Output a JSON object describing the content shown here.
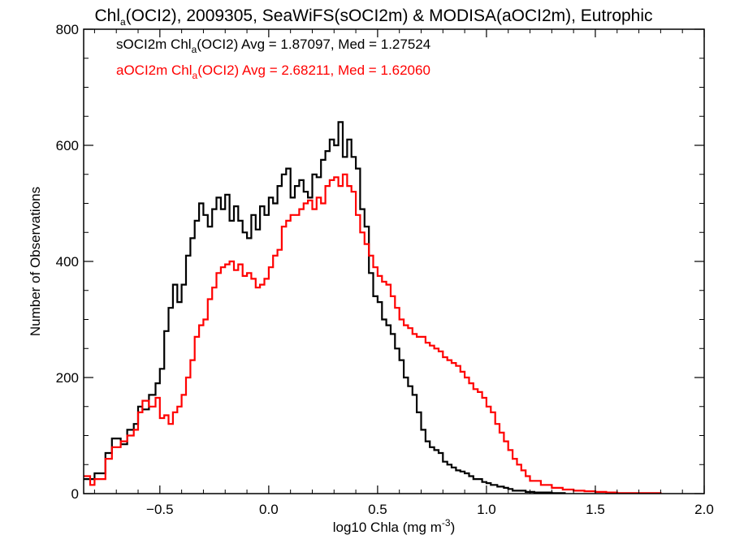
{
  "chart_data": {
    "type": "histogram",
    "title": {
      "prefix": "Chl",
      "subscript": "a",
      "suffix": "(OCI2), 2009305, SeaWiFS(sOCI2m) & MODISA(aOCI2m), Eutrophic"
    },
    "xlabel": {
      "prefix": "log10 Chla (mg m",
      "superscript": "-3",
      "suffix": ")"
    },
    "ylabel": "Number of Observations",
    "xlim": [
      -0.85,
      2.0
    ],
    "ylim": [
      0,
      800
    ],
    "xticks": [
      -0.5,
      0.0,
      0.5,
      1.0,
      1.5,
      2.0
    ],
    "xtick_labels": [
      "−0.5",
      "0.0",
      "0.5",
      "1.0",
      "1.5",
      "2.0"
    ],
    "yticks": [
      0,
      200,
      400,
      600,
      800
    ],
    "ytick_labels": [
      "0",
      "200",
      "400",
      "600",
      "800"
    ],
    "grid": false,
    "legend_position": "top-left",
    "series": [
      {
        "name": "sOCI2m",
        "color": "#000000",
        "legend": {
          "prefix": "sOCI2m Chl",
          "subscript": "a",
          "suffix": "(OCI2) Avg = 1.87097, Med = 1.27524"
        },
        "points": [
          [
            -0.85,
            25
          ],
          [
            -0.8,
            35
          ],
          [
            -0.75,
            70
          ],
          [
            -0.72,
            95
          ],
          [
            -0.68,
            85
          ],
          [
            -0.65,
            110
          ],
          [
            -0.62,
            120
          ],
          [
            -0.6,
            150
          ],
          [
            -0.58,
            145
          ],
          [
            -0.55,
            170
          ],
          [
            -0.52,
            190
          ],
          [
            -0.5,
            215
          ],
          [
            -0.48,
            280
          ],
          [
            -0.46,
            320
          ],
          [
            -0.44,
            360
          ],
          [
            -0.42,
            330
          ],
          [
            -0.4,
            360
          ],
          [
            -0.38,
            410
          ],
          [
            -0.36,
            440
          ],
          [
            -0.34,
            470
          ],
          [
            -0.32,
            500
          ],
          [
            -0.3,
            480
          ],
          [
            -0.28,
            460
          ],
          [
            -0.26,
            490
          ],
          [
            -0.24,
            510
          ],
          [
            -0.22,
            490
          ],
          [
            -0.2,
            515
          ],
          [
            -0.18,
            470
          ],
          [
            -0.16,
            495
          ],
          [
            -0.14,
            470
          ],
          [
            -0.12,
            450
          ],
          [
            -0.1,
            440
          ],
          [
            -0.08,
            480
          ],
          [
            -0.06,
            455
          ],
          [
            -0.04,
            495
          ],
          [
            -0.02,
            480
          ],
          [
            0.0,
            510
          ],
          [
            0.02,
            500
          ],
          [
            0.04,
            530
          ],
          [
            0.06,
            550
          ],
          [
            0.08,
            560
          ],
          [
            0.1,
            510
          ],
          [
            0.12,
            530
          ],
          [
            0.14,
            540
          ],
          [
            0.16,
            520
          ],
          [
            0.18,
            510
          ],
          [
            0.2,
            550
          ],
          [
            0.22,
            545
          ],
          [
            0.24,
            575
          ],
          [
            0.26,
            590
          ],
          [
            0.28,
            610
          ],
          [
            0.3,
            600
          ],
          [
            0.32,
            640
          ],
          [
            0.34,
            580
          ],
          [
            0.36,
            610
          ],
          [
            0.38,
            580
          ],
          [
            0.4,
            560
          ],
          [
            0.42,
            490
          ],
          [
            0.44,
            460
          ],
          [
            0.46,
            380
          ],
          [
            0.48,
            340
          ],
          [
            0.5,
            330
          ],
          [
            0.52,
            300
          ],
          [
            0.54,
            290
          ],
          [
            0.56,
            275
          ],
          [
            0.58,
            250
          ],
          [
            0.6,
            230
          ],
          [
            0.62,
            200
          ],
          [
            0.64,
            185
          ],
          [
            0.66,
            170
          ],
          [
            0.68,
            140
          ],
          [
            0.7,
            110
          ],
          [
            0.72,
            90
          ],
          [
            0.74,
            80
          ],
          [
            0.76,
            75
          ],
          [
            0.78,
            70
          ],
          [
            0.8,
            55
          ],
          [
            0.82,
            50
          ],
          [
            0.84,
            45
          ],
          [
            0.86,
            40
          ],
          [
            0.88,
            38
          ],
          [
            0.9,
            35
          ],
          [
            0.92,
            30
          ],
          [
            0.94,
            25
          ],
          [
            0.96,
            25
          ],
          [
            0.98,
            20
          ],
          [
            1.0,
            18
          ],
          [
            1.02,
            15
          ],
          [
            1.05,
            12
          ],
          [
            1.08,
            10
          ],
          [
            1.1,
            8
          ],
          [
            1.12,
            5
          ],
          [
            1.15,
            5
          ],
          [
            1.18,
            3
          ],
          [
            1.22,
            2
          ],
          [
            1.26,
            2
          ],
          [
            1.3,
            1
          ],
          [
            1.36,
            0
          ]
        ]
      },
      {
        "name": "aOCI2m",
        "color": "#ff0000",
        "legend": {
          "prefix": "aOCI2m Chl",
          "subscript": "a",
          "suffix": "(OCI2) Avg = 2.68211, Med = 1.62060"
        },
        "points": [
          [
            -0.85,
            30
          ],
          [
            -0.82,
            15
          ],
          [
            -0.8,
            25
          ],
          [
            -0.75,
            60
          ],
          [
            -0.72,
            80
          ],
          [
            -0.68,
            90
          ],
          [
            -0.65,
            100
          ],
          [
            -0.62,
            110
          ],
          [
            -0.6,
            140
          ],
          [
            -0.58,
            160
          ],
          [
            -0.55,
            150
          ],
          [
            -0.52,
            165
          ],
          [
            -0.5,
            130
          ],
          [
            -0.48,
            135
          ],
          [
            -0.46,
            120
          ],
          [
            -0.44,
            140
          ],
          [
            -0.42,
            150
          ],
          [
            -0.4,
            170
          ],
          [
            -0.38,
            200
          ],
          [
            -0.36,
            230
          ],
          [
            -0.34,
            270
          ],
          [
            -0.32,
            290
          ],
          [
            -0.3,
            300
          ],
          [
            -0.28,
            335
          ],
          [
            -0.26,
            355
          ],
          [
            -0.24,
            380
          ],
          [
            -0.22,
            390
          ],
          [
            -0.2,
            395
          ],
          [
            -0.18,
            400
          ],
          [
            -0.16,
            385
          ],
          [
            -0.14,
            395
          ],
          [
            -0.12,
            375
          ],
          [
            -0.1,
            380
          ],
          [
            -0.08,
            370
          ],
          [
            -0.06,
            355
          ],
          [
            -0.04,
            360
          ],
          [
            -0.02,
            370
          ],
          [
            0.0,
            390
          ],
          [
            0.02,
            410
          ],
          [
            0.04,
            420
          ],
          [
            0.06,
            460
          ],
          [
            0.08,
            470
          ],
          [
            0.1,
            480
          ],
          [
            0.12,
            480
          ],
          [
            0.14,
            490
          ],
          [
            0.16,
            500
          ],
          [
            0.18,
            505
          ],
          [
            0.2,
            490
          ],
          [
            0.22,
            510
          ],
          [
            0.24,
            500
          ],
          [
            0.26,
            530
          ],
          [
            0.28,
            540
          ],
          [
            0.3,
            545
          ],
          [
            0.32,
            530
          ],
          [
            0.34,
            550
          ],
          [
            0.36,
            530
          ],
          [
            0.38,
            520
          ],
          [
            0.4,
            480
          ],
          [
            0.42,
            450
          ],
          [
            0.44,
            430
          ],
          [
            0.46,
            410
          ],
          [
            0.48,
            390
          ],
          [
            0.5,
            375
          ],
          [
            0.52,
            365
          ],
          [
            0.54,
            360
          ],
          [
            0.56,
            340
          ],
          [
            0.58,
            320
          ],
          [
            0.6,
            300
          ],
          [
            0.62,
            290
          ],
          [
            0.64,
            285
          ],
          [
            0.66,
            275
          ],
          [
            0.68,
            270
          ],
          [
            0.7,
            270
          ],
          [
            0.72,
            260
          ],
          [
            0.74,
            255
          ],
          [
            0.76,
            250
          ],
          [
            0.78,
            245
          ],
          [
            0.8,
            235
          ],
          [
            0.82,
            230
          ],
          [
            0.84,
            225
          ],
          [
            0.86,
            220
          ],
          [
            0.88,
            210
          ],
          [
            0.9,
            200
          ],
          [
            0.92,
            190
          ],
          [
            0.94,
            180
          ],
          [
            0.96,
            175
          ],
          [
            0.98,
            165
          ],
          [
            1.0,
            150
          ],
          [
            1.02,
            140
          ],
          [
            1.04,
            120
          ],
          [
            1.06,
            105
          ],
          [
            1.08,
            90
          ],
          [
            1.1,
            75
          ],
          [
            1.12,
            60
          ],
          [
            1.14,
            50
          ],
          [
            1.16,
            40
          ],
          [
            1.18,
            30
          ],
          [
            1.2,
            22
          ],
          [
            1.25,
            15
          ],
          [
            1.3,
            10
          ],
          [
            1.35,
            7
          ],
          [
            1.4,
            5
          ],
          [
            1.45,
            4
          ],
          [
            1.5,
            3
          ],
          [
            1.55,
            2
          ],
          [
            1.6,
            1
          ],
          [
            1.7,
            1
          ],
          [
            1.8,
            0
          ]
        ]
      }
    ]
  }
}
